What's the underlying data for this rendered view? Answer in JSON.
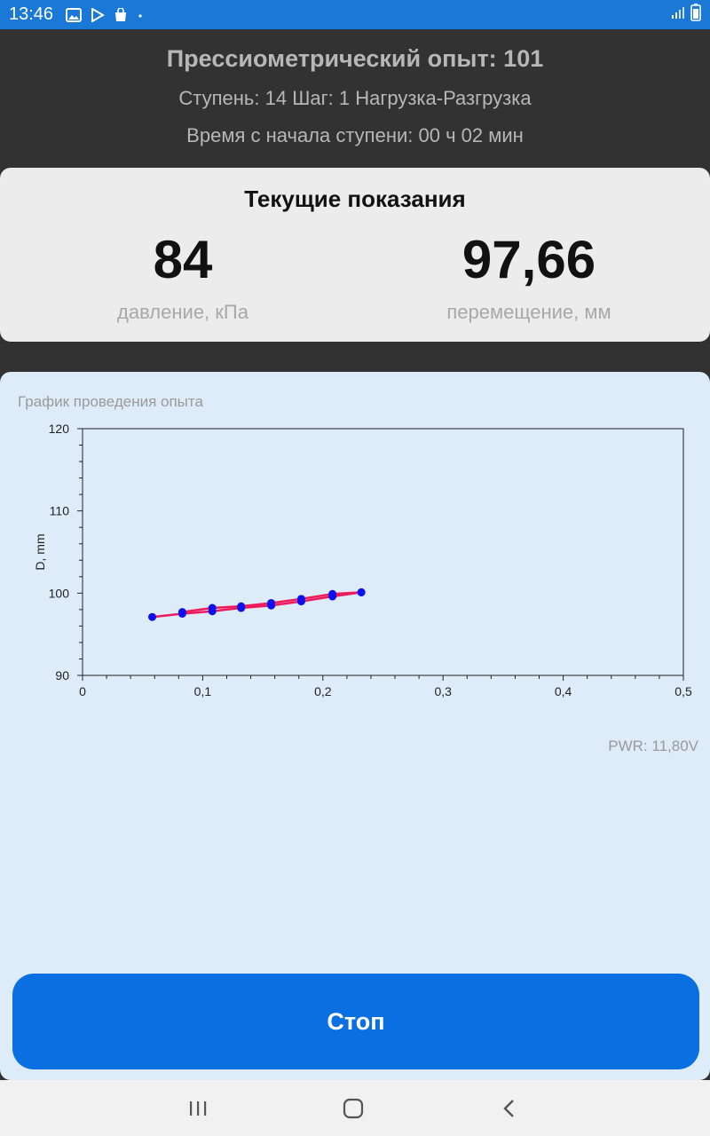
{
  "status_bar": {
    "time": "13:46",
    "icons": [
      "gallery-icon",
      "play-store-icon",
      "shopping-bag-icon",
      "dot-icon"
    ],
    "right_icons": [
      "signal-icon",
      "battery-icon"
    ]
  },
  "header": {
    "title": "Прессиометрический опыт: 101",
    "step": "Ступень: 14 Шаг: 1 Нагрузка-Разгрузка",
    "elapsed": "Время с начала ступени: 00 ч 02 мин"
  },
  "readings": {
    "title": "Текущие показания",
    "pressure_value": "84",
    "pressure_label": "давление, кПа",
    "displacement_value": "97,66",
    "displacement_label": "перемещение, мм"
  },
  "chart": {
    "panel_title": "График проведения опыта",
    "pwr": "PWR: 11,80V"
  },
  "chart_data": {
    "type": "line",
    "title": "",
    "xlabel": "",
    "ylabel": "D, mm",
    "xlim": [
      0,
      0.5
    ],
    "ylim": [
      90,
      120
    ],
    "x_ticks": [
      "0",
      "0,1",
      "0,2",
      "0,3",
      "0,4",
      "0,5"
    ],
    "y_ticks": [
      "90",
      "100",
      "110",
      "120"
    ],
    "line_color": "#ee1a5a",
    "point_color": "#0a10f0",
    "series": [
      {
        "x": [
          0.058,
          0.083,
          0.108,
          0.132,
          0.157,
          0.182,
          0.208,
          0.232
        ],
        "y": [
          97.1,
          97.5,
          97.8,
          98.2,
          98.5,
          99.0,
          99.6,
          100.1
        ]
      },
      {
        "x": [
          0.083,
          0.108,
          0.132,
          0.157,
          0.182,
          0.208,
          0.232
        ],
        "y": [
          97.7,
          98.2,
          98.4,
          98.8,
          99.3,
          99.9,
          100.1
        ]
      }
    ]
  },
  "stop_button": {
    "label": "Стоп",
    "color": "#0a6fe1"
  },
  "nav": {
    "icons": [
      "recent-apps-icon",
      "home-icon",
      "back-icon"
    ]
  }
}
